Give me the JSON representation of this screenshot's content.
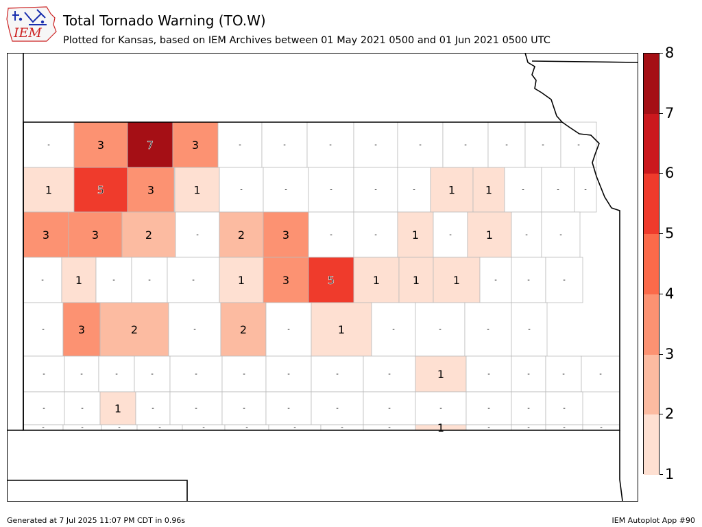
{
  "title": "Total Tornado Warning (TO.W)",
  "subtitle": "Plotted for Kansas, based on IEM Archives  between 01 May 2021 0500 and 01 Jun 2021 0500 UTC",
  "logo_text": "IEM",
  "footer_left": "Generated at 7 Jul 2025 11:07 PM CDT in 0.96s",
  "footer_right": "IEM Autoplot App #90",
  "colorbar": {
    "labels": [
      "8",
      "7",
      "6",
      "5",
      "4",
      "3",
      "2",
      "1"
    ],
    "colors": [
      "#fee0d2",
      "#fcbba1",
      "#fc9272",
      "#fb6a4a",
      "#ef3b2c",
      "#cb181d",
      "#a50f15"
    ]
  },
  "colors": {
    "no_data_fill": "#ffffff",
    "county_border": "#bbbbbb",
    "state_border": "#000000"
  },
  "county_labels": [
    "-",
    "3",
    "7",
    "3",
    "-",
    "-",
    "-",
    "-",
    "-",
    "-",
    "-",
    "-",
    "-",
    "1",
    "5",
    "3",
    "1",
    "-",
    "-",
    "-",
    "-",
    "-",
    "1",
    "1",
    "-",
    "-",
    "-",
    "3",
    "3",
    "2",
    "-",
    "2",
    "3",
    "-",
    "-",
    "1",
    "-",
    "1",
    "-",
    "-",
    "-",
    "1",
    "-",
    "-",
    "-",
    "1",
    "3",
    "5",
    "1",
    "1",
    "1",
    "-",
    "-",
    "-",
    "-",
    "3",
    "2",
    "-",
    "2",
    "-",
    "1",
    "-",
    "-",
    "-",
    "-",
    "-",
    "-",
    "-",
    "-",
    "-",
    "-",
    "-",
    "-",
    "-",
    "1",
    "-",
    "-",
    "-",
    "-",
    "-",
    "-",
    "1",
    "-",
    "-",
    "-",
    "-",
    "-",
    "-",
    "-",
    "-",
    "-",
    "-",
    "-",
    "-",
    "-",
    "-",
    "-",
    "-",
    "-",
    "-",
    "-",
    "1",
    "-",
    "-",
    "-",
    "-"
  ],
  "county_values": [
    0,
    3,
    7,
    3,
    0,
    0,
    0,
    0,
    0,
    0,
    0,
    0,
    0,
    1,
    5,
    3,
    1,
    0,
    0,
    0,
    0,
    0,
    1,
    1,
    0,
    0,
    0,
    3,
    3,
    2,
    0,
    2,
    3,
    0,
    0,
    1,
    0,
    1,
    0,
    0,
    0,
    1,
    0,
    0,
    0,
    1,
    3,
    5,
    1,
    1,
    1,
    0,
    0,
    0,
    0,
    3,
    2,
    0,
    2,
    0,
    1,
    0,
    0,
    0,
    0,
    0,
    0,
    0,
    0,
    0,
    0,
    0,
    0,
    0,
    1,
    0,
    0,
    0,
    0,
    0,
    0,
    1,
    0,
    0,
    0,
    0,
    0,
    0,
    0,
    0,
    0,
    0,
    0,
    0,
    0,
    0,
    0,
    0,
    0,
    0,
    0,
    1,
    0,
    0,
    0,
    0
  ]
}
